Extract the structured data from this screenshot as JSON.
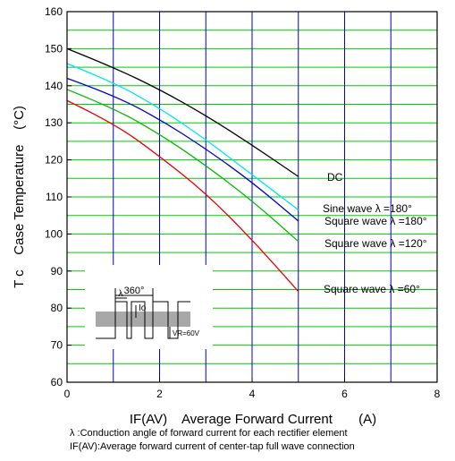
{
  "chart_data": {
    "type": "line",
    "xlabel": "IF(AV)    Average Forward Current       (A)",
    "ylabel": "T c    Case Temperature    (°C)",
    "xlim": [
      0,
      8
    ],
    "ylim": [
      60,
      160
    ],
    "xticks": [
      "0",
      "2",
      "4",
      "6",
      "8"
    ],
    "yticks": [
      "60",
      "70",
      "80",
      "90",
      "100",
      "110",
      "120",
      "130",
      "140",
      "150",
      "160"
    ],
    "grid": true,
    "grid_colors": {
      "vertical": "#0000cc",
      "horizontal": "#00cc00"
    },
    "series": [
      {
        "name": "DC",
        "color": "#000000",
        "x": [
          0,
          1,
          2,
          3,
          4,
          5
        ],
        "y": [
          150,
          145,
          139,
          132,
          124,
          115.5
        ]
      },
      {
        "name": "Sine wave λ =180°",
        "color": "#00e5ee",
        "x": [
          0,
          1,
          2,
          3,
          4,
          5
        ],
        "y": [
          146,
          141,
          134,
          125.5,
          116,
          106.5
        ]
      },
      {
        "name": "Square wave λ =180°",
        "color": "#0000cc",
        "x": [
          0,
          1,
          2,
          3,
          4,
          5
        ],
        "y": [
          142,
          137.5,
          131,
          123,
          114,
          103.5
        ]
      },
      {
        "name": "Square wave λ =120°",
        "color": "#00bb00",
        "x": [
          0,
          1,
          2,
          3,
          4,
          5
        ],
        "y": [
          139,
          134,
          127,
          118.5,
          109,
          98
        ]
      },
      {
        "name": "Square wave λ =60°",
        "color": "#ee0000",
        "x": [
          0,
          1,
          2,
          3,
          4,
          5
        ],
        "y": [
          136,
          130,
          121,
          111,
          98.5,
          84.5
        ]
      }
    ]
  },
  "inset": {
    "angle_label": "360°",
    "lambda_label": "λ",
    "io_label": "Io",
    "vr_label": "VR=60V"
  },
  "notes": [
    "λ :Conduction angle of forward current for each rectifier element",
    "IF(AV):Average forward current of center-tap full wave connection"
  ]
}
